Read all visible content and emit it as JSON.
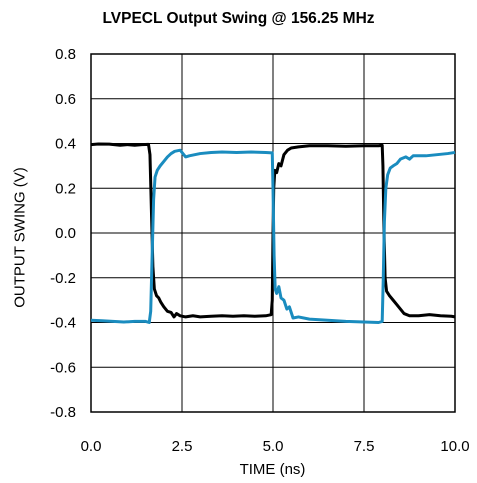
{
  "chart_data": {
    "type": "line",
    "title": "LVPECL Output Swing @ 156.25 MHz",
    "xlabel": "TIME (ns)",
    "ylabel": "OUTPUT SWING (V)",
    "xlim": [
      0,
      10
    ],
    "ylim": [
      -0.8,
      0.8
    ],
    "x_ticks": [
      0,
      2.5,
      5,
      7.5,
      10
    ],
    "x_tick_labels": [
      "0.0",
      "2.5",
      "5.0",
      "7.5",
      "10.0"
    ],
    "y_ticks": [
      0.8,
      0.6,
      0.4,
      0.2,
      0.0,
      -0.2,
      -0.4,
      -0.6,
      -0.8
    ],
    "y_tick_labels": [
      "0.8",
      "0.6",
      "0.4",
      "0.2",
      "0.0",
      "-0.2",
      "-0.4",
      "-0.6",
      "-0.8"
    ],
    "grid": true,
    "colors": {
      "series_1": "#000000",
      "series_2": "#1a8cbf",
      "grid": "#000000"
    },
    "series": [
      {
        "color": "#000000",
        "points": [
          [
            0.0,
            0.395
          ],
          [
            0.2,
            0.398
          ],
          [
            0.5,
            0.397
          ],
          [
            0.8,
            0.392
          ],
          [
            1.0,
            0.395
          ],
          [
            1.2,
            0.392
          ],
          [
            1.4,
            0.395
          ],
          [
            1.58,
            0.396
          ],
          [
            1.62,
            0.35
          ],
          [
            1.66,
            0.1
          ],
          [
            1.7,
            -0.15
          ],
          [
            1.74,
            -0.25
          ],
          [
            1.8,
            -0.28
          ],
          [
            1.86,
            -0.29
          ],
          [
            1.92,
            -0.31
          ],
          [
            2.0,
            -0.33
          ],
          [
            2.1,
            -0.35
          ],
          [
            2.2,
            -0.355
          ],
          [
            2.28,
            -0.375
          ],
          [
            2.35,
            -0.36
          ],
          [
            2.45,
            -0.37
          ],
          [
            2.6,
            -0.375
          ],
          [
            2.8,
            -0.37
          ],
          [
            3.0,
            -0.375
          ],
          [
            3.3,
            -0.372
          ],
          [
            3.6,
            -0.37
          ],
          [
            3.9,
            -0.372
          ],
          [
            4.2,
            -0.37
          ],
          [
            4.5,
            -0.372
          ],
          [
            4.8,
            -0.37
          ],
          [
            4.95,
            -0.365
          ],
          [
            4.98,
            -0.3
          ],
          [
            5.0,
            0.0
          ],
          [
            5.02,
            0.2
          ],
          [
            5.05,
            0.28
          ],
          [
            5.1,
            0.27
          ],
          [
            5.16,
            0.31
          ],
          [
            5.22,
            0.3
          ],
          [
            5.3,
            0.35
          ],
          [
            5.4,
            0.37
          ],
          [
            5.5,
            0.38
          ],
          [
            5.7,
            0.385
          ],
          [
            6.0,
            0.39
          ],
          [
            6.5,
            0.39
          ],
          [
            7.0,
            0.388
          ],
          [
            7.5,
            0.39
          ],
          [
            7.9,
            0.39
          ],
          [
            8.0,
            0.392
          ],
          [
            8.02,
            0.3
          ],
          [
            8.05,
            0.0
          ],
          [
            8.08,
            -0.2
          ],
          [
            8.12,
            -0.26
          ],
          [
            8.2,
            -0.28
          ],
          [
            8.3,
            -0.3
          ],
          [
            8.4,
            -0.32
          ],
          [
            8.5,
            -0.34
          ],
          [
            8.6,
            -0.36
          ],
          [
            8.75,
            -0.37
          ],
          [
            9.0,
            -0.37
          ],
          [
            9.3,
            -0.365
          ],
          [
            9.6,
            -0.37
          ],
          [
            9.9,
            -0.372
          ],
          [
            10.0,
            -0.375
          ]
        ]
      },
      {
        "color": "#1a8cbf",
        "points": [
          [
            0.0,
            -0.39
          ],
          [
            0.3,
            -0.392
          ],
          [
            0.6,
            -0.395
          ],
          [
            0.9,
            -0.398
          ],
          [
            1.2,
            -0.395
          ],
          [
            1.5,
            -0.395
          ],
          [
            1.6,
            -0.4
          ],
          [
            1.64,
            -0.35
          ],
          [
            1.68,
            -0.1
          ],
          [
            1.72,
            0.15
          ],
          [
            1.76,
            0.25
          ],
          [
            1.82,
            0.28
          ],
          [
            1.9,
            0.3
          ],
          [
            2.0,
            0.32
          ],
          [
            2.1,
            0.34
          ],
          [
            2.2,
            0.355
          ],
          [
            2.3,
            0.365
          ],
          [
            2.45,
            0.37
          ],
          [
            2.6,
            0.34
          ],
          [
            2.7,
            0.345
          ],
          [
            3.0,
            0.355
          ],
          [
            3.3,
            0.36
          ],
          [
            3.6,
            0.362
          ],
          [
            4.0,
            0.36
          ],
          [
            4.4,
            0.362
          ],
          [
            4.8,
            0.36
          ],
          [
            4.98,
            0.358
          ],
          [
            5.0,
            0.2
          ],
          [
            5.03,
            -0.1
          ],
          [
            5.06,
            -0.25
          ],
          [
            5.1,
            -0.27
          ],
          [
            5.16,
            -0.24
          ],
          [
            5.22,
            -0.29
          ],
          [
            5.3,
            -0.3
          ],
          [
            5.38,
            -0.34
          ],
          [
            5.45,
            -0.33
          ],
          [
            5.55,
            -0.38
          ],
          [
            5.7,
            -0.375
          ],
          [
            6.0,
            -0.385
          ],
          [
            6.5,
            -0.39
          ],
          [
            7.0,
            -0.395
          ],
          [
            7.5,
            -0.398
          ],
          [
            7.9,
            -0.4
          ],
          [
            8.0,
            -0.395
          ],
          [
            8.03,
            -0.2
          ],
          [
            8.06,
            0.05
          ],
          [
            8.1,
            0.2
          ],
          [
            8.15,
            0.26
          ],
          [
            8.22,
            0.29
          ],
          [
            8.3,
            0.3
          ],
          [
            8.4,
            0.31
          ],
          [
            8.5,
            0.33
          ],
          [
            8.65,
            0.34
          ],
          [
            8.75,
            0.33
          ],
          [
            8.85,
            0.345
          ],
          [
            9.2,
            0.345
          ],
          [
            9.5,
            0.35
          ],
          [
            9.8,
            0.355
          ],
          [
            10.0,
            0.36
          ]
        ]
      }
    ]
  }
}
